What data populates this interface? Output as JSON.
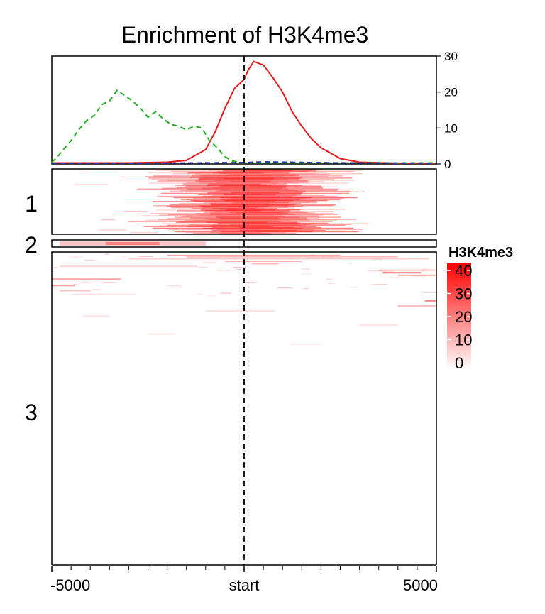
{
  "chart_data": {
    "type": "heatmap",
    "title": "Enrichment of H3K4me3",
    "profile": {
      "type": "line",
      "ylim": [
        0,
        30
      ],
      "yticks": [
        0,
        10,
        20,
        30
      ],
      "xlim": [
        -5000,
        5000
      ],
      "series": [
        {
          "cluster": "1",
          "color": "#e41a1c",
          "style": "solid",
          "x": [
            -5000,
            -4000,
            -3000,
            -2000,
            -1500,
            -1000,
            -750,
            -500,
            -250,
            0,
            100,
            250,
            500,
            750,
            1000,
            1250,
            1500,
            1750,
            2000,
            2500,
            3000,
            4000,
            5000
          ],
          "y": [
            0.3,
            0.3,
            0.3,
            0.5,
            1.0,
            4.0,
            9.0,
            15.5,
            21.0,
            23.5,
            26.0,
            28.5,
            27.5,
            24.0,
            20.0,
            14.5,
            10.5,
            7.0,
            4.5,
            1.5,
            0.5,
            0.2,
            0.2
          ]
        },
        {
          "cluster": "2",
          "color": "#1fae1f",
          "style": "dashed",
          "x": [
            -5000,
            -4850,
            -4700,
            -4500,
            -4300,
            -4100,
            -3900,
            -3700,
            -3500,
            -3300,
            -3100,
            -2900,
            -2700,
            -2500,
            -2300,
            -2100,
            -1900,
            -1700,
            -1500,
            -1300,
            -1100,
            -900,
            -700,
            -500,
            -300,
            0,
            5000
          ],
          "y": [
            0.5,
            2.0,
            4.0,
            6.5,
            9.5,
            12.0,
            13.5,
            16.5,
            17.5,
            20.5,
            19.0,
            17.5,
            15.5,
            13.0,
            14.5,
            12.5,
            11.0,
            10.5,
            9.5,
            10.5,
            10.0,
            6.5,
            4.5,
            2.0,
            0.8,
            0.3,
            0.3
          ]
        },
        {
          "cluster": "3",
          "color": "#2b3aa8",
          "style": "dashed",
          "x": [
            -5000,
            -2500,
            0,
            500,
            2500,
            5000
          ],
          "y": [
            0.2,
            0.2,
            0.4,
            0.6,
            0.3,
            0.2
          ]
        }
      ]
    },
    "clusters": [
      {
        "label": "1",
        "rows": 90,
        "signal": "high",
        "center_bp": 200,
        "spread_bp": 1500
      },
      {
        "label": "2",
        "rows": 10,
        "signal": "low",
        "center_bp": -3500,
        "spread_bp": 1500
      },
      {
        "label": "3",
        "rows": 430,
        "signal": "background",
        "center_bp": 0,
        "spread_bp": 3000
      }
    ],
    "x_axis": {
      "ticks": [
        -5000,
        0,
        5000
      ],
      "tick_labels": [
        "-5000",
        "start",
        "5000"
      ]
    },
    "reference_line": {
      "x": 0,
      "style": "dashed"
    },
    "legend": {
      "title": "H3K4me3",
      "placement": "right",
      "ticks": [
        0,
        10,
        20,
        30,
        40
      ],
      "colors": [
        "#ffffff",
        "#ff0000"
      ],
      "range": [
        0,
        40
      ]
    }
  }
}
